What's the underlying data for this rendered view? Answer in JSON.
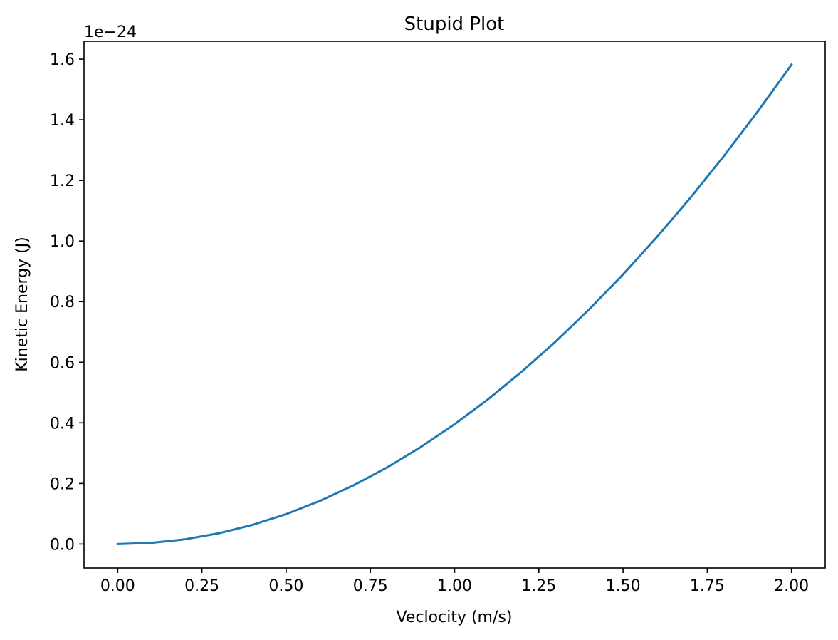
{
  "chart_data": {
    "type": "line",
    "title": "Stupid Plot",
    "xlabel": "Veclocity (m/s)",
    "ylabel": "Kinetic Energy (J)",
    "y_offset_label": "1e−24",
    "xlim": [
      -0.1,
      2.1
    ],
    "ylim": [
      -0.079,
      1.659
    ],
    "grid": false,
    "legend": "none",
    "x_ticks": [
      0,
      0.25,
      0.5,
      0.75,
      1.0,
      1.25,
      1.5,
      1.75,
      2.0
    ],
    "x_tick_labels": [
      "0.00",
      "0.25",
      "0.50",
      "0.75",
      "1.00",
      "1.25",
      "1.50",
      "1.75",
      "2.00"
    ],
    "y_ticks": [
      0,
      0.2,
      0.4,
      0.6,
      0.8,
      1.0,
      1.2,
      1.4,
      1.6
    ],
    "y_tick_labels": [
      "0.0",
      "0.2",
      "0.4",
      "0.6",
      "0.8",
      "1.0",
      "1.2",
      "1.4",
      "1.6"
    ],
    "series": [
      {
        "color": "#1f77b4",
        "x": [
          0,
          0.1,
          0.2,
          0.3,
          0.4,
          0.5,
          0.6,
          0.7,
          0.8,
          0.9,
          1.0,
          1.1,
          1.2,
          1.3,
          1.4,
          1.5,
          1.6,
          1.7,
          1.8,
          1.9,
          2.0
        ],
        "y": [
          0,
          0.00396,
          0.01582,
          0.0356,
          0.0633,
          0.0989,
          0.1424,
          0.1938,
          0.2531,
          0.3204,
          0.3955,
          0.4786,
          0.5696,
          0.6684,
          0.7752,
          0.8899,
          1.0125,
          1.143,
          1.2815,
          1.4278,
          1.582
        ]
      }
    ]
  }
}
